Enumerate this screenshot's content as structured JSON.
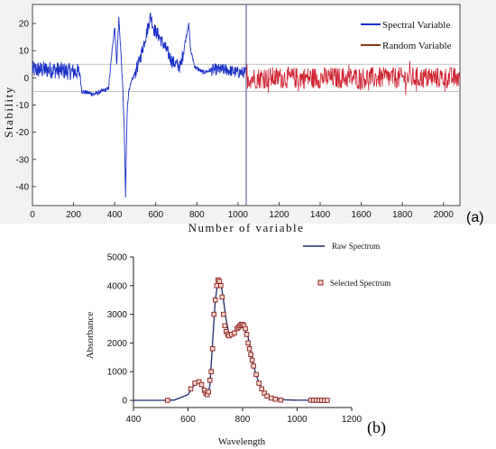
{
  "chart_data": [
    {
      "panel": "(a)",
      "type": "line",
      "xlabel": "Number of variable",
      "ylabel": "Stability",
      "xlim": [
        0,
        2080
      ],
      "ylim": [
        -47,
        27
      ],
      "xticks": [
        0,
        200,
        400,
        600,
        800,
        1000,
        1200,
        1400,
        1600,
        1800,
        2000
      ],
      "yticks": [
        20,
        10,
        0,
        -10,
        -20,
        -30,
        -40
      ],
      "grid": false,
      "legend_position": "top-right",
      "divider_x": 1040,
      "threshold_lines": [
        5,
        -5
      ],
      "series": [
        {
          "name": "Spectral Variable",
          "color": "#1a2fc8",
          "x": [
            0,
            100,
            230,
            240,
            300,
            370,
            385,
            400,
            410,
            420,
            430,
            440,
            447,
            453,
            457,
            462,
            470,
            480,
            500,
            520,
            540,
            560,
            575,
            590,
            610,
            640,
            680,
            720,
            750,
            760,
            770,
            790,
            830,
            880,
            940,
            1000,
            1040
          ],
          "values": [
            3,
            3,
            2,
            -5,
            -6,
            -4,
            8,
            19,
            5,
            22,
            10,
            -5,
            -20,
            -44,
            -25,
            -10,
            -4,
            -2,
            2,
            6,
            12,
            18,
            23,
            18,
            16,
            12,
            6,
            4,
            16,
            20,
            10,
            4,
            2,
            3,
            3,
            2,
            2
          ]
        },
        {
          "name": "Random Variable",
          "color": "#8b3a14",
          "x": [
            1040,
            2080
          ],
          "values": [
            0,
            0
          ],
          "noise_amplitude": 4
        }
      ]
    },
    {
      "panel": "(b)",
      "type": "line",
      "xlabel": "Wavelength",
      "ylabel": "Absorbance",
      "xlim": [
        400,
        1200
      ],
      "ylim": [
        -250,
        5000
      ],
      "xticks": [
        400,
        600,
        800,
        1000,
        1200
      ],
      "yticks": [
        0,
        1000,
        2000,
        3000,
        4000,
        5000
      ],
      "legend_position": "top-right",
      "series": [
        {
          "name": "Raw Spectrum",
          "color": "#1f2a6e",
          "x": [
            400,
            500,
            550,
            600,
            620,
            640,
            650,
            660,
            670,
            680,
            690,
            700,
            710,
            720,
            730,
            740,
            750,
            760,
            780,
            800,
            820,
            840,
            860,
            880,
            900,
            950,
            1000,
            1050,
            1100,
            1120
          ],
          "values": [
            0,
            0,
            10,
            200,
            500,
            650,
            600,
            300,
            200,
            500,
            2000,
            3500,
            4200,
            4100,
            3500,
            2800,
            2300,
            2250,
            2500,
            2650,
            2200,
            1200,
            600,
            250,
            80,
            20,
            5,
            5,
            0,
            0
          ]
        },
        {
          "name": "Selected Spectrum",
          "color": "#8b1a1a",
          "x": [
            525,
            610,
            625,
            640,
            650,
            660,
            665,
            670,
            675,
            680,
            685,
            690,
            695,
            700,
            705,
            710,
            715,
            720,
            725,
            730,
            735,
            740,
            745,
            750,
            760,
            770,
            780,
            785,
            790,
            795,
            800,
            805,
            810,
            815,
            820,
            825,
            830,
            835,
            840,
            850,
            860,
            870,
            880,
            890,
            905,
            920,
            940,
            1050,
            1060,
            1070,
            1080,
            1090,
            1100,
            1110
          ],
          "values": [
            0,
            400,
            600,
            650,
            550,
            350,
            250,
            200,
            300,
            700,
            1000,
            1800,
            3000,
            3500,
            4000,
            4200,
            4150,
            4000,
            3600,
            3000,
            2600,
            2400,
            2300,
            2250,
            2300,
            2350,
            2500,
            2550,
            2600,
            2650,
            2650,
            2600,
            2500,
            2300,
            2000,
            1800,
            1600,
            1400,
            1200,
            900,
            600,
            400,
            250,
            150,
            80,
            40,
            10,
            5,
            5,
            5,
            0,
            0,
            0,
            0
          ]
        }
      ]
    }
  ]
}
